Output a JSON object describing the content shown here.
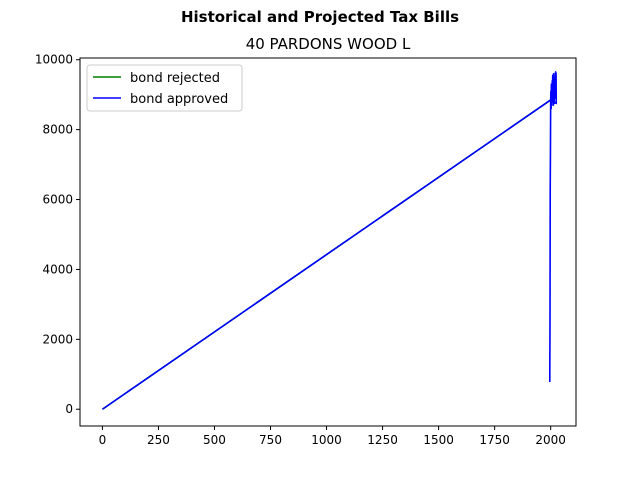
{
  "chart_data": {
    "type": "line",
    "suptitle": "Historical and Projected Tax Bills",
    "title": "40 PARDONS WOOD L",
    "xlabel": "",
    "ylabel": "",
    "xlim": [
      -100,
      2113
    ],
    "ylim": [
      -480,
      10050
    ],
    "x_ticks": [
      0,
      250,
      500,
      750,
      1000,
      1250,
      1500,
      1750,
      2000
    ],
    "y_ticks": [
      0,
      2000,
      4000,
      6000,
      8000,
      10000
    ],
    "grid": false,
    "legend_position": "upper left",
    "series": [
      {
        "name": "bond rejected",
        "color": "#008000",
        "points": [
          [
            0,
            0
          ],
          [
            2000,
            8850
          ]
        ]
      },
      {
        "name": "bond approved",
        "color": "#0000ff",
        "points": [
          [
            0,
            0
          ],
          [
            2000,
            8850
          ],
          [
            2001,
            9100
          ],
          [
            2002,
            8600
          ],
          [
            2003,
            9300
          ],
          [
            2004,
            8700
          ],
          [
            2005,
            9200
          ],
          [
            2006,
            8800
          ],
          [
            2007,
            9400
          ],
          [
            2008,
            8900
          ],
          [
            2009,
            9550
          ],
          [
            2010,
            8800
          ],
          [
            2011,
            9300
          ],
          [
            2012,
            8700
          ],
          [
            2013,
            9600
          ],
          [
            2014,
            9000
          ],
          [
            2015,
            9400
          ],
          [
            2016,
            8750
          ],
          [
            2017,
            9200
          ],
          [
            2018,
            8900
          ],
          [
            2019,
            9500
          ],
          [
            2020,
            9050
          ],
          [
            2021,
            9600
          ],
          [
            2022,
            9650
          ],
          [
            2023,
            9000
          ],
          [
            2024,
            9620
          ],
          [
            2025,
            8750
          ],
          [
            2000,
            8850
          ],
          [
            1999,
            7400
          ],
          [
            1998,
            6300
          ],
          [
            1997,
            2500
          ],
          [
            1996,
            780
          ]
        ]
      }
    ]
  }
}
